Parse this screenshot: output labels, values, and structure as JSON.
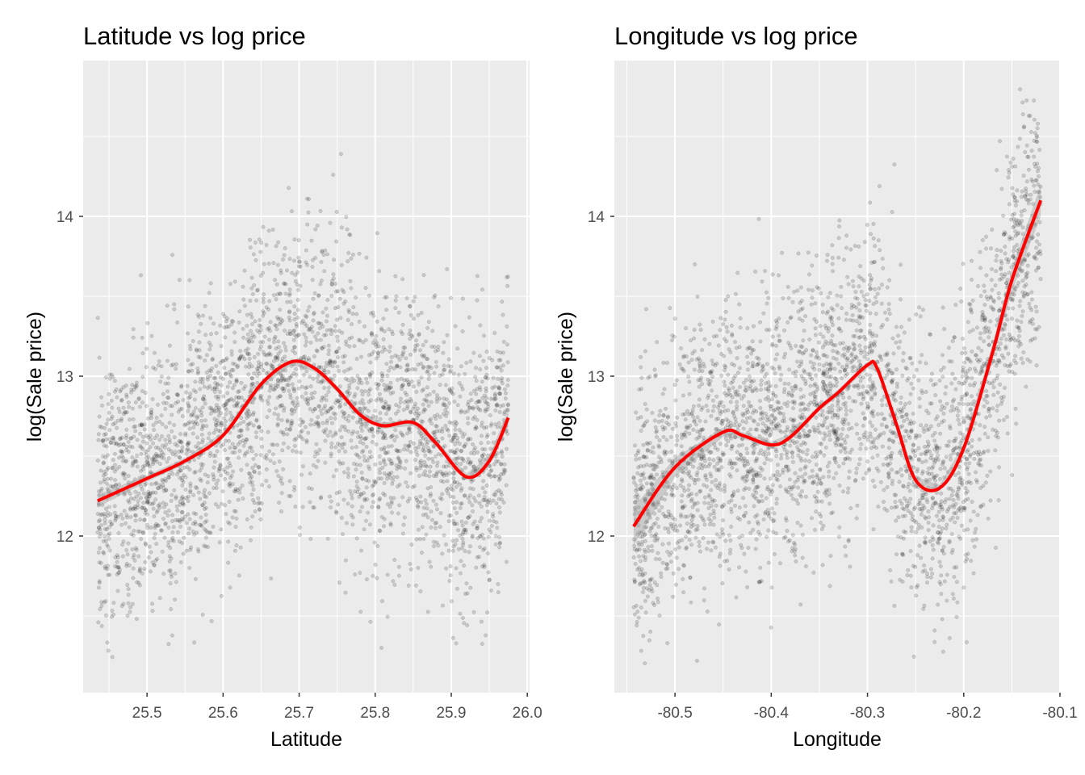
{
  "chart_data": [
    {
      "type": "scatter",
      "title": "Latitude vs log price",
      "xlabel": "Latitude",
      "ylabel": "log(Sale price)",
      "xlim": [
        25.416,
        26.003
      ],
      "ylim": [
        11.02,
        14.975
      ],
      "xticks": [
        25.5,
        25.6,
        25.7,
        25.8,
        25.9,
        26.0
      ],
      "xtick_labels": [
        "25.5",
        "25.6",
        "25.7",
        "25.8",
        "25.9",
        "26.0"
      ],
      "yticks": [
        12,
        13,
        14
      ],
      "ytick_labels": [
        "12",
        "13",
        "14"
      ],
      "x_range": [
        25.435,
        25.975
      ],
      "point_color": "#000000",
      "point_alpha": 0.15,
      "smooth_color": "#ff0000",
      "smooth": {
        "x": [
          25.435,
          25.5,
          25.55,
          25.6,
          25.65,
          25.69,
          25.72,
          25.75,
          25.78,
          25.81,
          25.85,
          25.88,
          25.92,
          25.95,
          25.975
        ],
        "y": [
          12.22,
          12.36,
          12.47,
          12.63,
          12.95,
          13.09,
          13.05,
          12.92,
          12.76,
          12.69,
          12.71,
          12.58,
          12.37,
          12.47,
          12.74
        ],
        "se": [
          0.04,
          0.02,
          0.02,
          0.02,
          0.02,
          0.02,
          0.02,
          0.02,
          0.02,
          0.02,
          0.02,
          0.02,
          0.02,
          0.03,
          0.05
        ]
      }
    },
    {
      "type": "scatter",
      "title": "Longitude vs log price",
      "xlabel": "Longitude",
      "ylabel": "log(Sale price)",
      "xlim": [
        -80.563,
        -80.1
      ],
      "ylim": [
        11.02,
        14.975
      ],
      "xticks": [
        -80.5,
        -80.4,
        -80.3,
        -80.2,
        -80.1
      ],
      "xtick_labels": [
        "-80.5",
        "-80.4",
        "-80.3",
        "-80.2",
        "-80.1"
      ],
      "yticks": [
        12,
        13,
        14
      ],
      "ytick_labels": [
        "12",
        "13",
        "14"
      ],
      "x_range": [
        -80.543,
        -80.12
      ],
      "point_color": "#000000",
      "point_alpha": 0.15,
      "smooth_color": "#ff0000",
      "smooth": {
        "x": [
          -80.543,
          -80.5,
          -80.45,
          -80.43,
          -80.4,
          -80.38,
          -80.35,
          -80.33,
          -80.3,
          -80.29,
          -80.27,
          -80.25,
          -80.225,
          -80.2,
          -80.17,
          -80.15,
          -80.12
        ],
        "y": [
          12.06,
          12.43,
          12.65,
          12.63,
          12.57,
          12.62,
          12.8,
          12.9,
          13.07,
          13.05,
          12.7,
          12.35,
          12.3,
          12.55,
          13.15,
          13.6,
          14.1
        ],
        "se": [
          0.12,
          0.06,
          0.03,
          0.02,
          0.02,
          0.02,
          0.02,
          0.02,
          0.02,
          0.02,
          0.02,
          0.02,
          0.02,
          0.03,
          0.05,
          0.07,
          0.1
        ]
      }
    }
  ]
}
